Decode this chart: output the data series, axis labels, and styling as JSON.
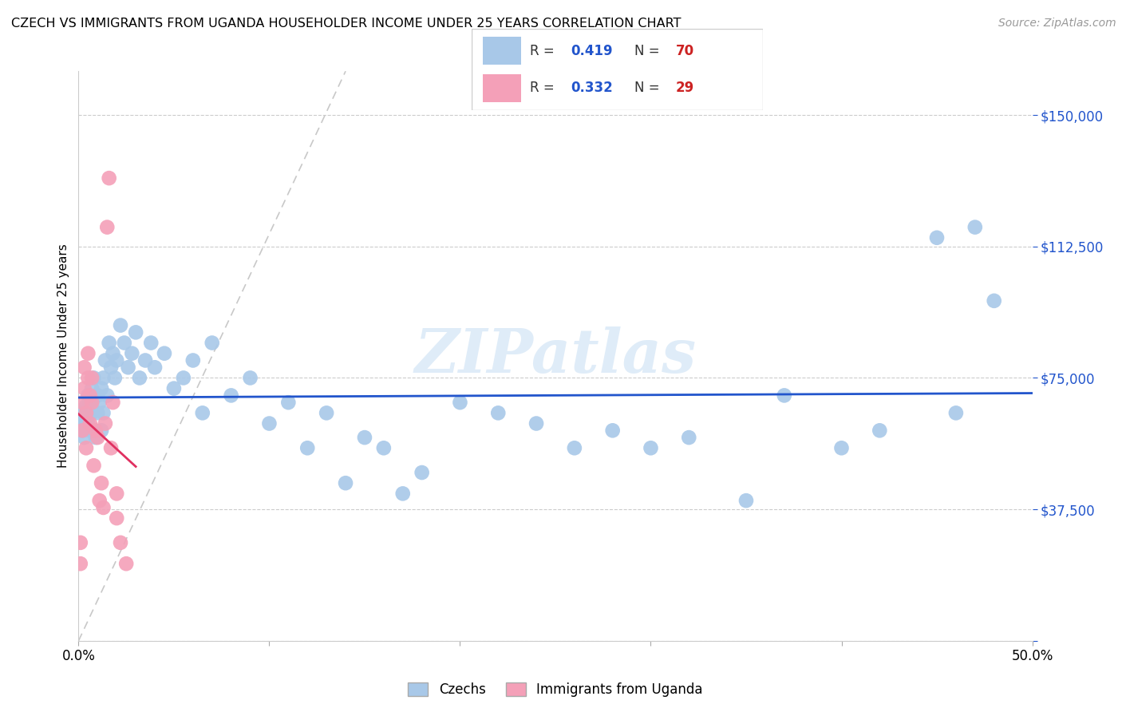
{
  "title": "CZECH VS IMMIGRANTS FROM UGANDA HOUSEHOLDER INCOME UNDER 25 YEARS CORRELATION CHART",
  "source": "Source: ZipAtlas.com",
  "ylabel": "Householder Income Under 25 years",
  "xlim": [
    0.0,
    0.5
  ],
  "ylim": [
    0,
    162500
  ],
  "yticks": [
    0,
    37500,
    75000,
    112500,
    150000
  ],
  "ytick_labels": [
    "",
    "$37,500",
    "$75,000",
    "$112,500",
    "$150,000"
  ],
  "xticks": [
    0.0,
    0.1,
    0.2,
    0.3,
    0.4,
    0.5
  ],
  "czechs_color": "#a8c8e8",
  "uganda_color": "#f4a0b8",
  "czechs_line_color": "#2255cc",
  "uganda_line_color": "#e03060",
  "ref_line_color": "#c8c8c8",
  "watermark": "ZIPatlas",
  "watermark_color": "#b0d0ee",
  "czechs_x": [
    0.001,
    0.002,
    0.002,
    0.003,
    0.003,
    0.004,
    0.005,
    0.005,
    0.006,
    0.006,
    0.007,
    0.007,
    0.008,
    0.008,
    0.009,
    0.01,
    0.01,
    0.011,
    0.012,
    0.012,
    0.013,
    0.013,
    0.014,
    0.015,
    0.016,
    0.017,
    0.018,
    0.019,
    0.02,
    0.022,
    0.024,
    0.026,
    0.028,
    0.03,
    0.032,
    0.035,
    0.038,
    0.04,
    0.045,
    0.05,
    0.055,
    0.06,
    0.065,
    0.07,
    0.08,
    0.09,
    0.1,
    0.11,
    0.12,
    0.13,
    0.14,
    0.15,
    0.16,
    0.17,
    0.18,
    0.2,
    0.22,
    0.24,
    0.26,
    0.28,
    0.3,
    0.32,
    0.35,
    0.37,
    0.4,
    0.42,
    0.45,
    0.46,
    0.47,
    0.48
  ],
  "czechs_y": [
    62000,
    60000,
    65000,
    58000,
    63000,
    67000,
    70000,
    62000,
    60000,
    68000,
    72000,
    65000,
    60000,
    75000,
    58000,
    65000,
    70000,
    68000,
    72000,
    60000,
    75000,
    65000,
    80000,
    70000,
    85000,
    78000,
    82000,
    75000,
    80000,
    90000,
    85000,
    78000,
    82000,
    88000,
    75000,
    80000,
    85000,
    78000,
    82000,
    72000,
    75000,
    80000,
    65000,
    85000,
    70000,
    75000,
    62000,
    68000,
    55000,
    65000,
    45000,
    58000,
    55000,
    42000,
    48000,
    68000,
    65000,
    62000,
    55000,
    60000,
    55000,
    58000,
    40000,
    70000,
    55000,
    60000,
    115000,
    65000,
    118000,
    97000
  ],
  "uganda_x": [
    0.001,
    0.001,
    0.002,
    0.002,
    0.003,
    0.003,
    0.004,
    0.004,
    0.005,
    0.005,
    0.006,
    0.006,
    0.007,
    0.007,
    0.008,
    0.009,
    0.01,
    0.011,
    0.012,
    0.013,
    0.014,
    0.015,
    0.016,
    0.017,
    0.018,
    0.02,
    0.02,
    0.022,
    0.025
  ],
  "uganda_y": [
    22000,
    28000,
    60000,
    68000,
    72000,
    78000,
    65000,
    55000,
    75000,
    82000,
    62000,
    70000,
    68000,
    75000,
    50000,
    60000,
    58000,
    40000,
    45000,
    38000,
    62000,
    118000,
    132000,
    55000,
    68000,
    42000,
    35000,
    28000,
    22000
  ]
}
